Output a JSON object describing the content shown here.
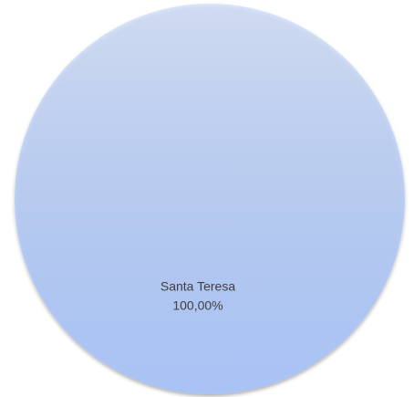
{
  "chart_data": {
    "type": "pie",
    "categories": [
      "Santa Teresa"
    ],
    "values": [
      100
    ],
    "value_labels": [
      "100,00%"
    ],
    "colors": [
      "#a9c3f5"
    ]
  }
}
